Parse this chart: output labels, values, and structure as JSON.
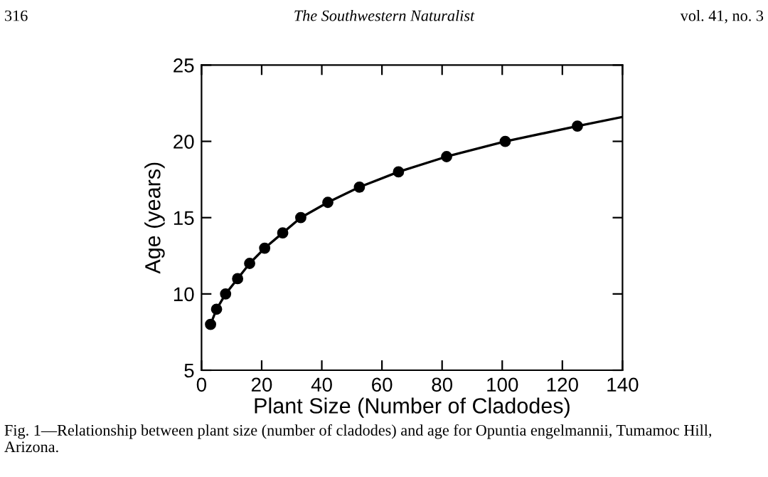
{
  "chart_data": {
    "type": "scatter",
    "xlabel": "Plant Size (Number of Cladodes)",
    "ylabel": "Age (years)",
    "annotations": [
      "316",
      "The Southwestern Naturalist",
      "vol. 41, no. 3",
      "Fig. 1—Relationship between plant size (number of cladodes) and age for Opuntia engelmannii, Tumamoc Hill, Arizona."
    ],
    "series": [
      {
        "color": "#000000",
        "marker": "circle",
        "x": [
          3,
          5,
          8,
          12,
          16,
          21,
          27,
          33,
          42,
          52.5,
          65.5,
          81.5,
          101,
          125
        ],
        "values": [
          8,
          9,
          10,
          11,
          12,
          13,
          14,
          15,
          16,
          17,
          18,
          19,
          20,
          21
        ]
      },
      {
        "type": "line",
        "color": "#000000",
        "line_style": "solid",
        "x": [
          3,
          5,
          8,
          12,
          16,
          21,
          27,
          33,
          42,
          52.5,
          65.5,
          81.5,
          101,
          125,
          140
        ],
        "values": [
          8,
          9,
          10,
          11,
          12,
          13,
          14,
          15,
          16,
          17,
          18,
          19,
          20,
          21,
          21.6
        ]
      }
    ],
    "xlim": [
      0,
      140
    ],
    "xticks": [
      0,
      20,
      40,
      60,
      80,
      100,
      120,
      140
    ],
    "ylim": [
      5,
      25
    ],
    "yticks": [
      5,
      10,
      15,
      20,
      25
    ],
    "grid": false,
    "legend": false
  }
}
